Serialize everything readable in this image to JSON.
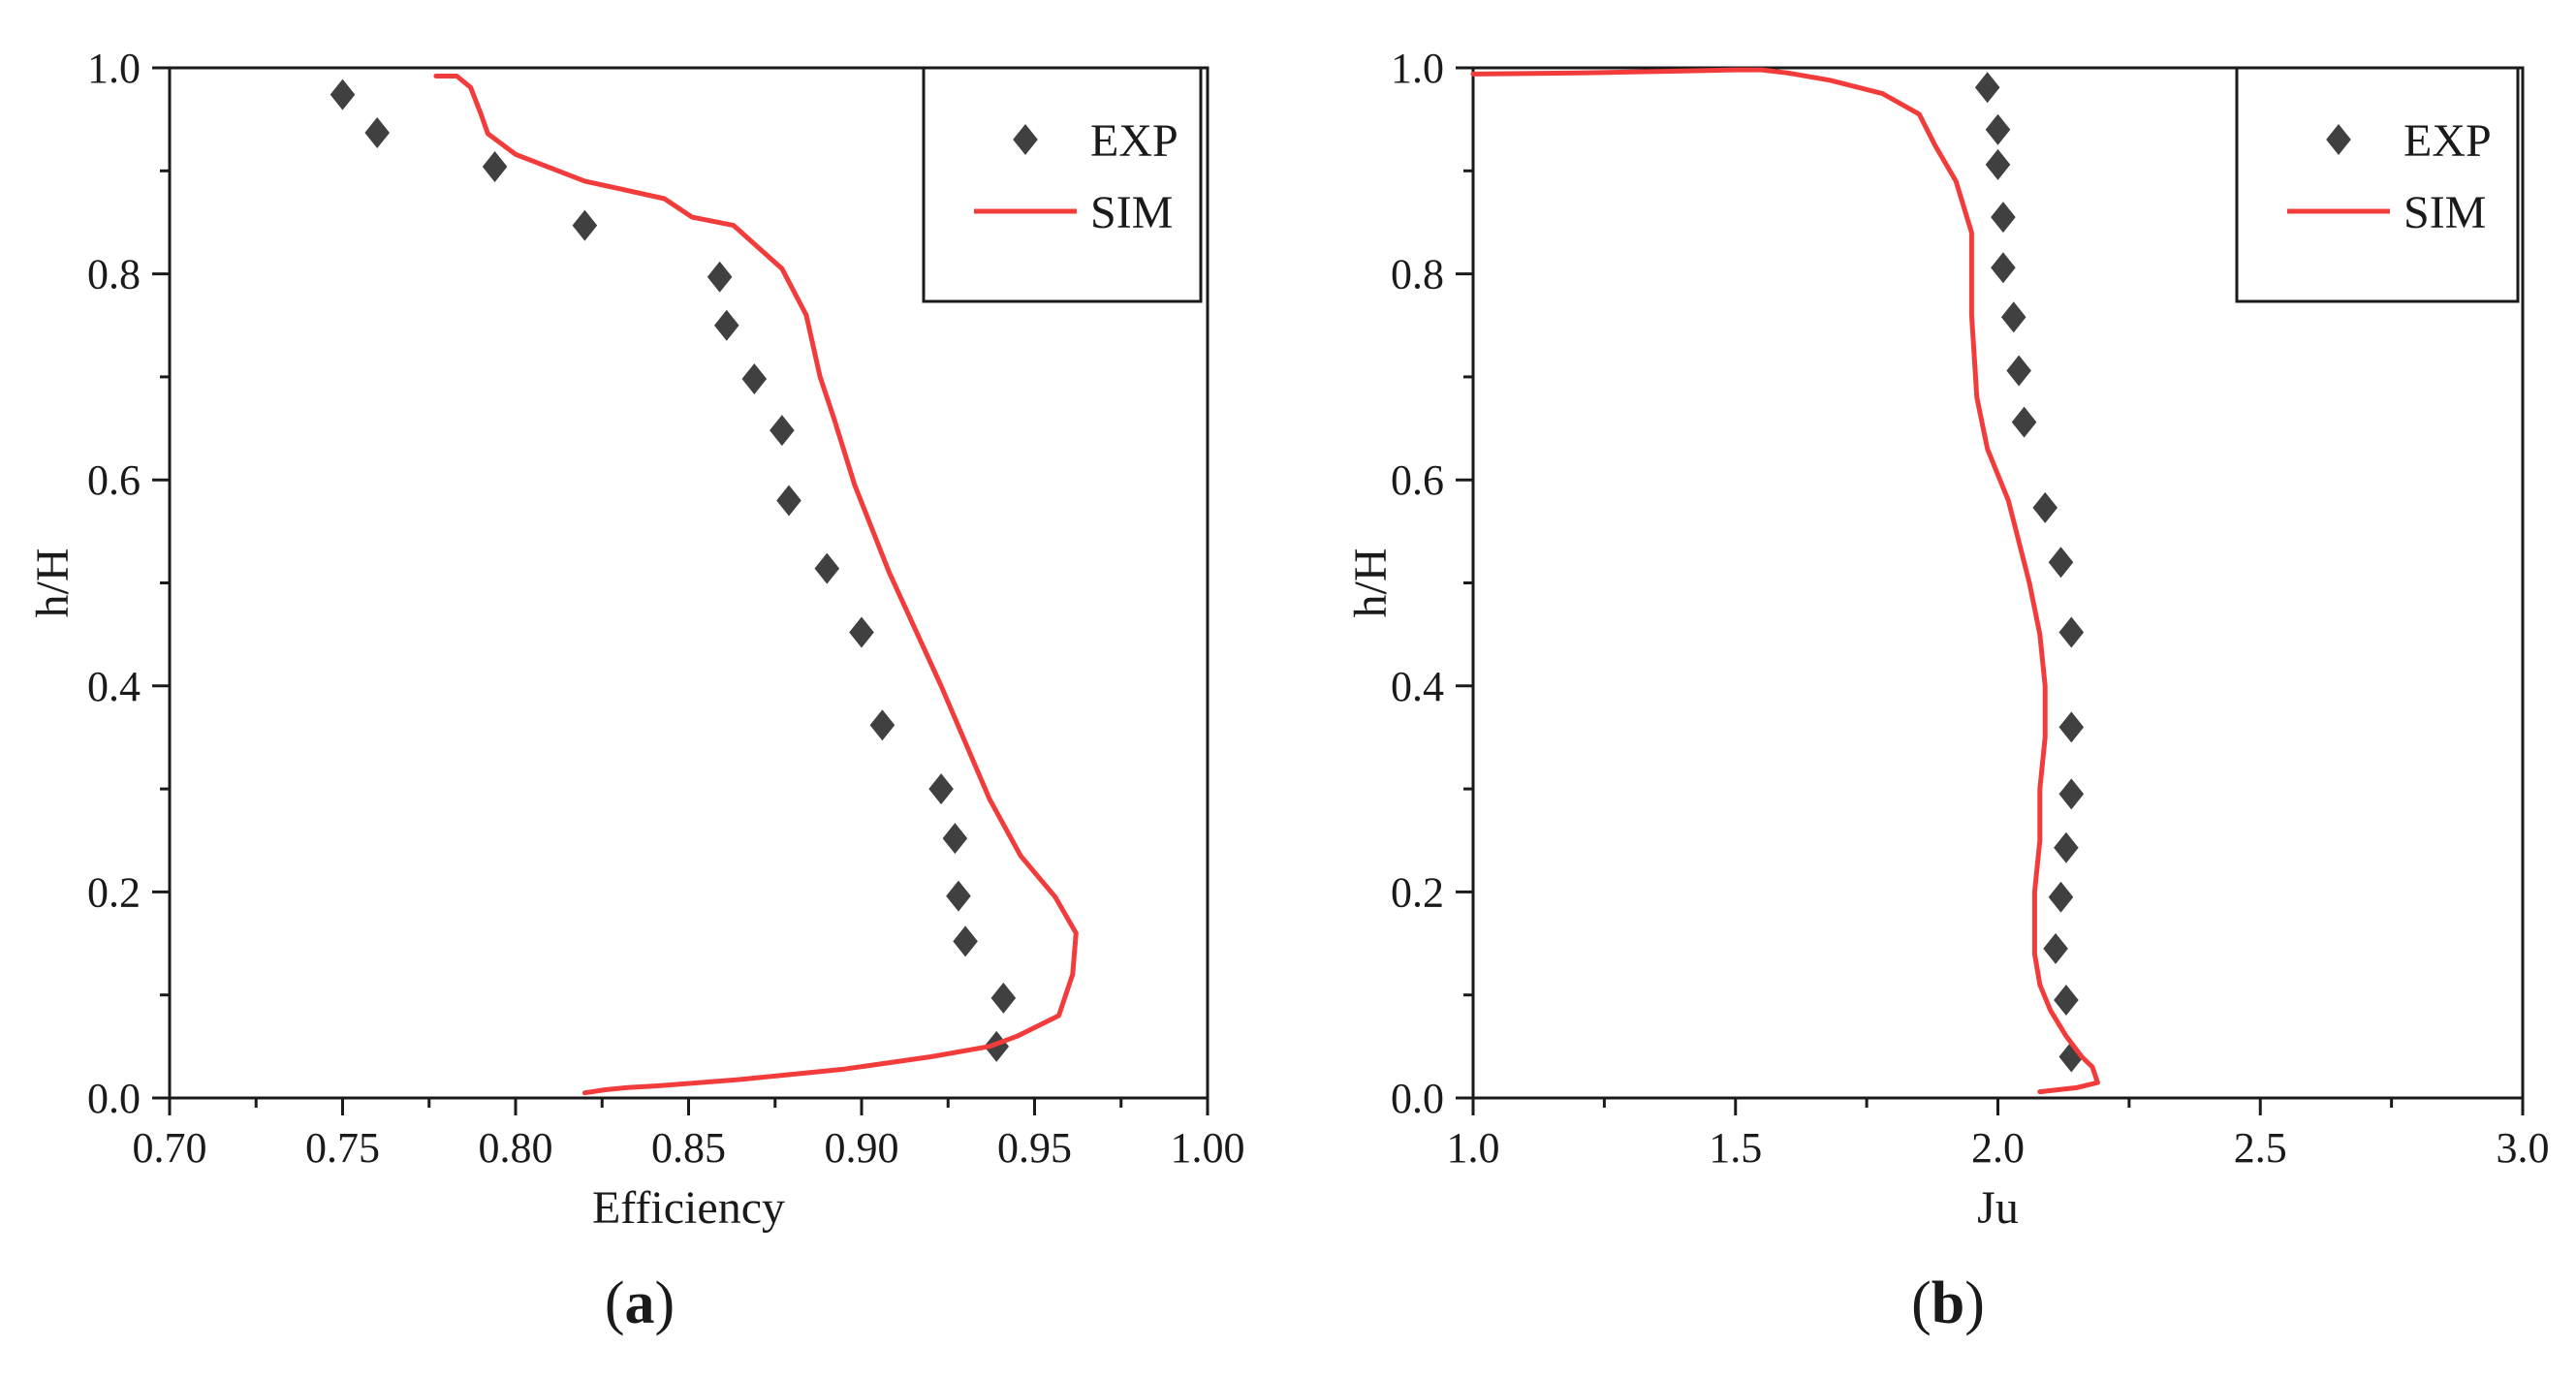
{
  "chart_data": [
    {
      "type": "scatter",
      "title": "",
      "panel_label": "a",
      "xlabel": "Efficiency",
      "ylabel": "h/H",
      "xlim": [
        0.7,
        1.0
      ],
      "ylim": [
        0.0,
        1.0
      ],
      "xticks": [
        0.7,
        0.75,
        0.8,
        0.85,
        0.9,
        0.95,
        1.0
      ],
      "yticks": [
        0.0,
        0.2,
        0.4,
        0.6,
        0.8,
        1.0
      ],
      "xtick_labels": [
        "0.70",
        "0.75",
        "0.80",
        "0.85",
        "0.90",
        "0.95",
        "1.00"
      ],
      "ytick_labels": [
        "0.0",
        "0.2",
        "0.4",
        "0.6",
        "0.8",
        "1.0"
      ],
      "grid": false,
      "legend_position": "top-right",
      "series": [
        {
          "name": "EXP",
          "kind": "scatter",
          "marker": "diamond",
          "color": "#404040",
          "x": [
            0.75,
            0.76,
            0.794,
            0.82,
            0.859,
            0.861,
            0.869,
            0.877,
            0.879,
            0.89,
            0.9,
            0.906,
            0.923,
            0.927,
            0.928,
            0.93,
            0.941,
            0.939
          ],
          "y": [
            0.974,
            0.937,
            0.904,
            0.847,
            0.797,
            0.75,
            0.698,
            0.648,
            0.58,
            0.514,
            0.452,
            0.362,
            0.3,
            0.252,
            0.196,
            0.152,
            0.097,
            0.05
          ]
        },
        {
          "name": "SIM",
          "kind": "line",
          "color": "#f23c3c",
          "x": [
            0.777,
            0.783,
            0.787,
            0.79,
            0.792,
            0.8,
            0.82,
            0.843,
            0.851,
            0.863,
            0.877,
            0.884,
            0.888,
            0.892,
            0.898,
            0.908,
            0.923,
            0.937,
            0.946,
            0.956,
            0.962,
            0.961,
            0.957,
            0.945,
            0.937,
            0.92,
            0.895,
            0.865,
            0.842,
            0.832,
            0.826,
            0.82
          ],
          "y": [
            0.992,
            0.992,
            0.981,
            0.955,
            0.936,
            0.916,
            0.89,
            0.873,
            0.855,
            0.847,
            0.805,
            0.76,
            0.7,
            0.66,
            0.595,
            0.51,
            0.4,
            0.29,
            0.235,
            0.195,
            0.16,
            0.12,
            0.08,
            0.06,
            0.05,
            0.04,
            0.028,
            0.018,
            0.012,
            0.01,
            0.008,
            0.005
          ]
        }
      ]
    },
    {
      "type": "scatter",
      "title": "",
      "panel_label": "b",
      "xlabel": "Ju",
      "ylabel": "h/H",
      "xlim": [
        1.0,
        3.0
      ],
      "ylim": [
        0.0,
        1.0
      ],
      "xticks": [
        1.0,
        1.5,
        2.0,
        2.5,
        3.0
      ],
      "yticks": [
        0.0,
        0.2,
        0.4,
        0.6,
        0.8,
        1.0
      ],
      "xtick_labels": [
        "1.0",
        "1.5",
        "2.0",
        "2.5",
        "3.0"
      ],
      "ytick_labels": [
        "0.0",
        "0.2",
        "0.4",
        "0.6",
        "0.8",
        "1.0"
      ],
      "grid": false,
      "legend_position": "top-right",
      "series": [
        {
          "name": "EXP",
          "kind": "scatter",
          "marker": "diamond",
          "color": "#404040",
          "x": [
            1.98,
            2.0,
            2.0,
            2.01,
            2.01,
            2.03,
            2.04,
            2.05,
            2.09,
            2.12,
            2.14,
            2.14,
            2.14,
            2.13,
            2.12,
            2.11,
            2.13,
            2.14
          ],
          "y": [
            0.981,
            0.94,
            0.906,
            0.855,
            0.806,
            0.758,
            0.706,
            0.656,
            0.573,
            0.52,
            0.452,
            0.36,
            0.295,
            0.243,
            0.195,
            0.145,
            0.095,
            0.04
          ]
        },
        {
          "name": "SIM",
          "kind": "line",
          "color": "#f23c3c",
          "x": [
            1.0,
            1.2,
            1.4,
            1.5,
            1.55,
            1.6,
            1.68,
            1.78,
            1.85,
            1.88,
            1.92,
            1.95,
            1.95,
            1.96,
            1.98,
            2.02,
            2.06,
            2.08,
            2.09,
            2.09,
            2.08,
            2.08,
            2.07,
            2.07,
            2.08,
            2.1,
            2.13,
            2.16,
            2.18,
            2.19,
            2.15,
            2.08
          ],
          "y": [
            0.994,
            0.995,
            0.997,
            0.998,
            0.998,
            0.995,
            0.988,
            0.975,
            0.955,
            0.925,
            0.89,
            0.84,
            0.76,
            0.68,
            0.63,
            0.58,
            0.5,
            0.45,
            0.4,
            0.35,
            0.3,
            0.25,
            0.2,
            0.14,
            0.11,
            0.085,
            0.06,
            0.04,
            0.03,
            0.015,
            0.01,
            0.006
          ]
        }
      ]
    }
  ]
}
